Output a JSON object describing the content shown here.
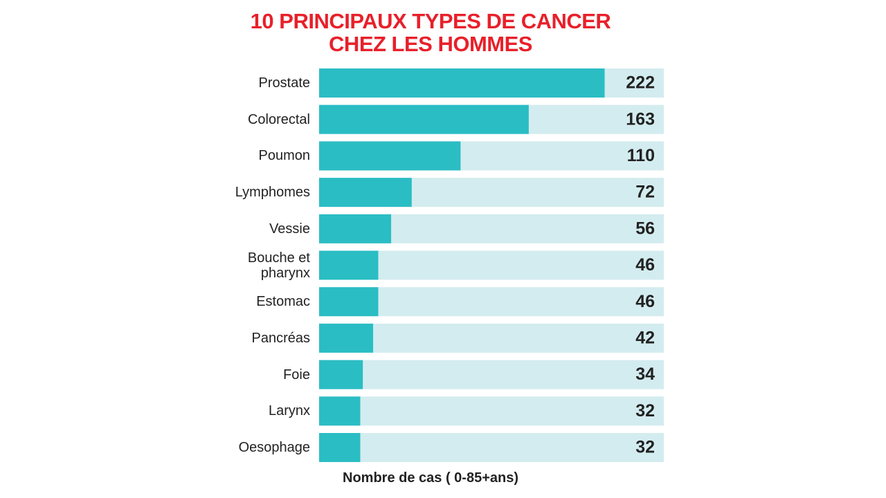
{
  "chart_data": {
    "type": "bar",
    "orientation": "horizontal",
    "title": "10 PRINCIPAUX TYPES DE CANCER CHEZ LES HOMMES",
    "x_label": "Nombre de cas ( 0-85+ans)",
    "categories": [
      "Prostate",
      "Colorectal",
      "Poumon",
      "Lymphomes",
      "Vessie",
      "Bouche et pharynx",
      "Estomac",
      "Pancréas",
      "Foie",
      "Larynx",
      "Oesophage"
    ],
    "values": [
      222,
      163,
      110,
      72,
      56,
      46,
      46,
      42,
      34,
      32,
      32
    ],
    "color": "#2bbdc4",
    "track_color": "#d3ecef",
    "title_color": "#e8202a",
    "xlim": [
      0,
      268
    ]
  }
}
